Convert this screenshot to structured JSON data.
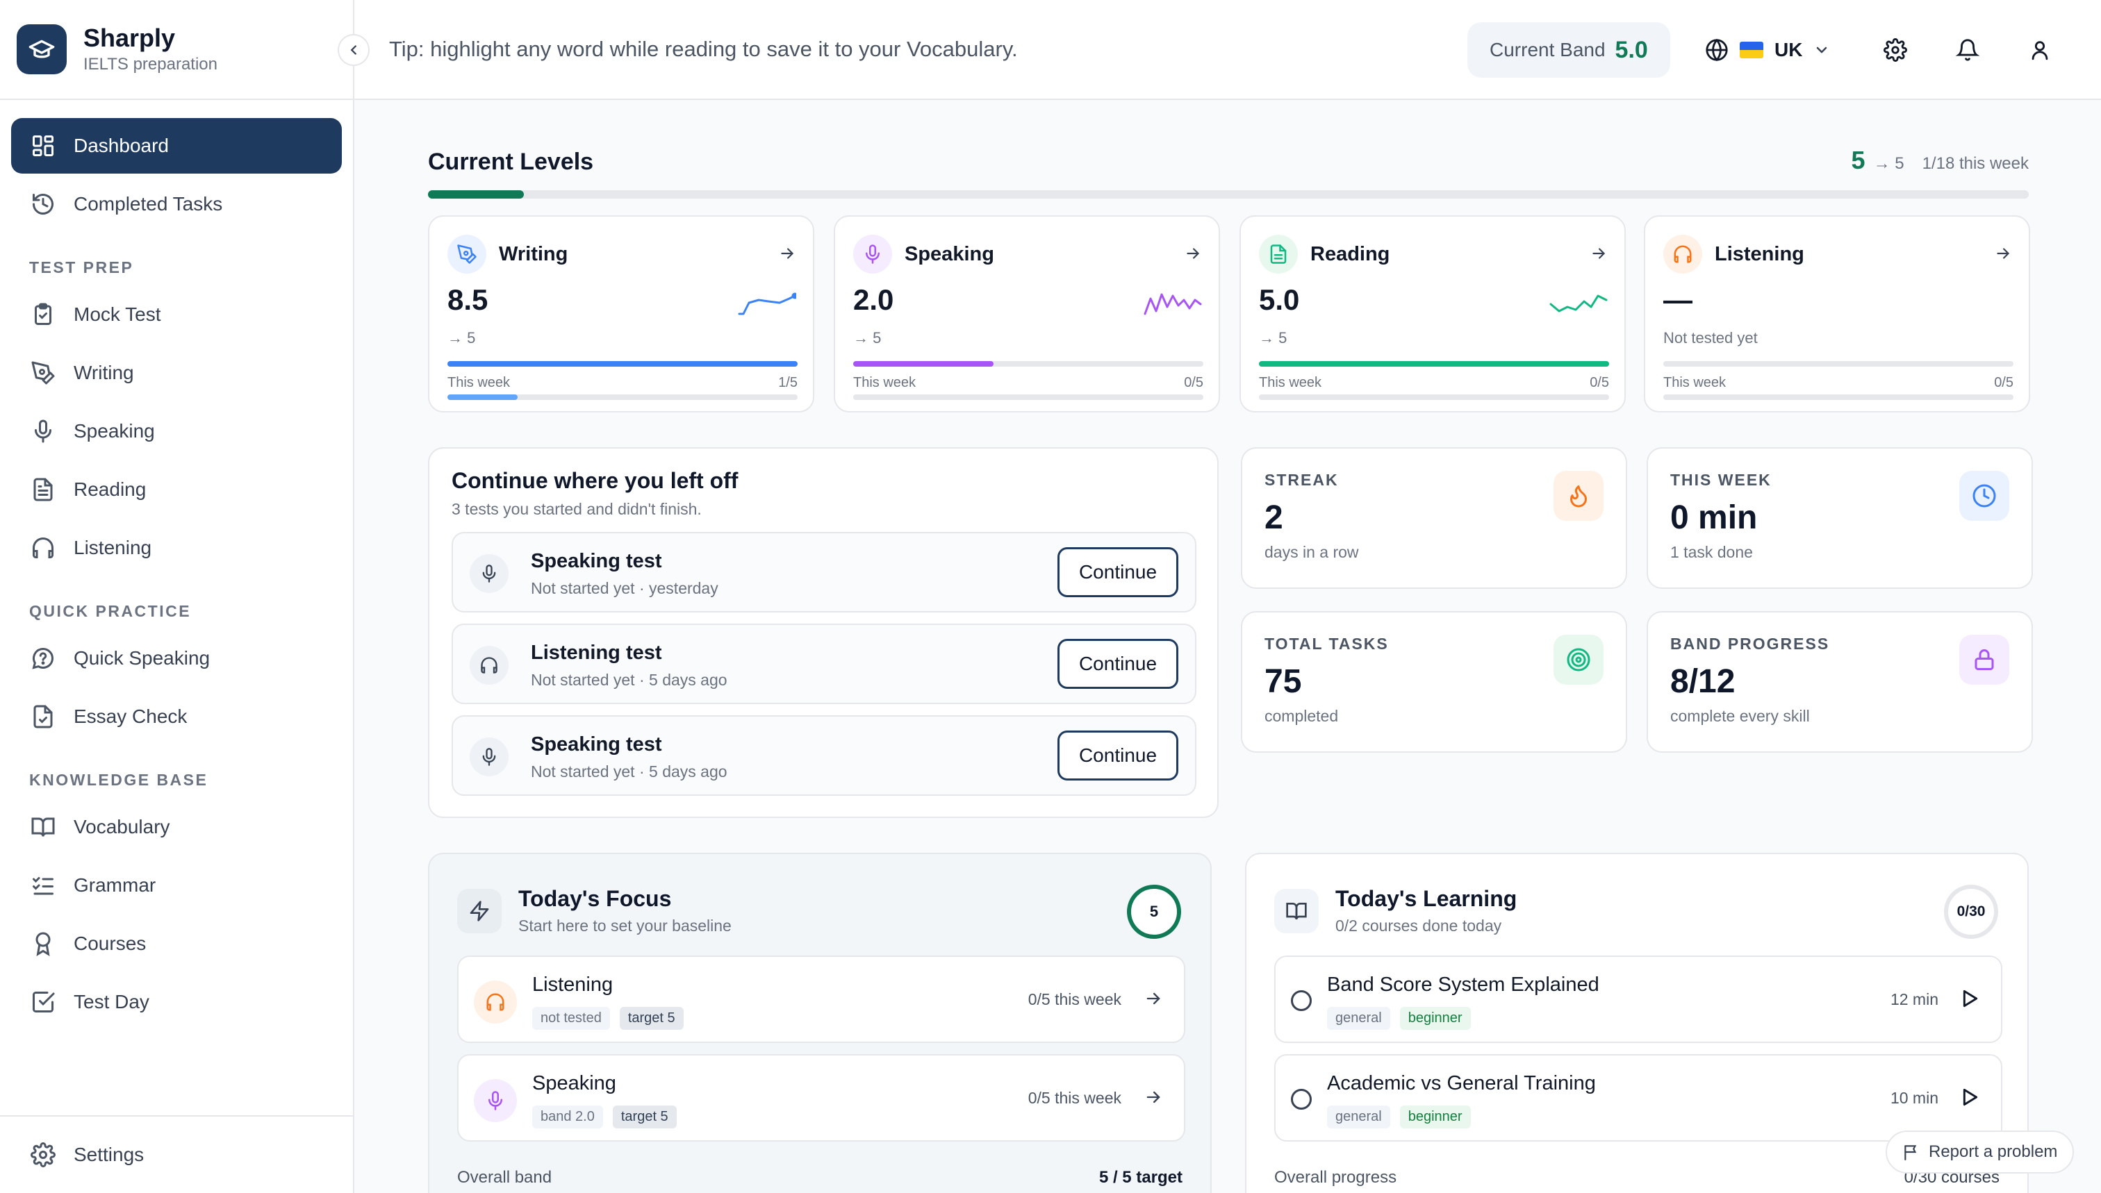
{
  "brand": {
    "name": "Sharply",
    "subtitle": "IELTS preparation"
  },
  "header": {
    "tip": "Tip: highlight any word while reading to save it to your Vocabulary.",
    "current_band_label": "Current Band",
    "current_band_value": "5.0",
    "language": "UK"
  },
  "sidebar": {
    "top_items": [
      {
        "label": "Dashboard"
      },
      {
        "label": "Completed Tasks"
      }
    ],
    "sections": [
      {
        "title": "TEST PREP",
        "items": [
          {
            "label": "Mock Test"
          },
          {
            "label": "Writing"
          },
          {
            "label": "Speaking"
          },
          {
            "label": "Reading"
          },
          {
            "label": "Listening"
          }
        ]
      },
      {
        "title": "QUICK PRACTICE",
        "items": [
          {
            "label": "Quick Speaking"
          },
          {
            "label": "Essay Check"
          }
        ]
      },
      {
        "title": "KNOWLEDGE BASE",
        "items": [
          {
            "label": "Vocabulary"
          },
          {
            "label": "Grammar"
          },
          {
            "label": "Courses"
          },
          {
            "label": "Test Day"
          }
        ]
      }
    ],
    "settings_label": "Settings"
  },
  "levels": {
    "title": "Current Levels",
    "summary_current": "5",
    "summary_arrow": "→ 5",
    "summary_week": "1/18 this week",
    "progress": 0.06
  },
  "skills": [
    {
      "name": "Writing",
      "score": "8.5",
      "target": "→ 5",
      "week_label": "This week",
      "week_count": "1/5",
      "score_fill": 1.0,
      "week_fill": 0.2,
      "color": "#3b82f6"
    },
    {
      "name": "Speaking",
      "score": "2.0",
      "target": "→ 5",
      "week_label": "This week",
      "week_count": "0/5",
      "score_fill": 0.4,
      "week_fill": 0.0,
      "color": "#a855f7"
    },
    {
      "name": "Reading",
      "score": "5.0",
      "target": "→ 5",
      "week_label": "This week",
      "week_count": "0/5",
      "score_fill": 1.0,
      "week_fill": 0.0,
      "color": "#10b981"
    },
    {
      "name": "Listening",
      "score": "—",
      "target": "Not tested yet",
      "week_label": "This week",
      "week_count": "0/5",
      "score_fill": 0.0,
      "week_fill": 0.0,
      "color": "#f97316"
    }
  ],
  "continue": {
    "title": "Continue where you left off",
    "subtitle": "3 tests you started and didn't finish.",
    "button_label": "Continue",
    "items": [
      {
        "name": "Speaking test",
        "meta": "Not started yet · yesterday",
        "icon": "mic-icon"
      },
      {
        "name": "Listening test",
        "meta": "Not started yet · 5 days ago",
        "icon": "headphones-icon"
      },
      {
        "name": "Speaking test",
        "meta": "Not started yet · 5 days ago",
        "icon": "mic-icon"
      }
    ]
  },
  "stats": [
    {
      "label": "STREAK",
      "value": "2",
      "sub": "days in a row",
      "icon": "flame-icon",
      "color": "#f97316"
    },
    {
      "label": "THIS WEEK",
      "value": "0 min",
      "sub": "1 task done",
      "icon": "clock-icon",
      "color": "#3b82f6"
    },
    {
      "label": "TOTAL TASKS",
      "value": "75",
      "sub": "completed",
      "icon": "target-icon",
      "color": "#10b981"
    },
    {
      "label": "BAND PROGRESS",
      "value": "8/12",
      "sub": "complete every skill",
      "icon": "lock-icon",
      "color": "#a855f7"
    }
  ],
  "focus": {
    "title": "Today's Focus",
    "subtitle": "Start here to set your baseline",
    "ring_value": "5",
    "items": [
      {
        "name": "Listening",
        "tag1": "not tested",
        "tag2": "target 5",
        "right": "0/5 this week"
      },
      {
        "name": "Speaking",
        "tag1": "band 2.0",
        "tag2": "target 5",
        "right": "0/5 this week"
      }
    ],
    "footer_label": "Overall band",
    "footer_value": "5 / 5 target"
  },
  "learning": {
    "title": "Today's Learning",
    "subtitle": "0/2 courses done today",
    "ring_value": "0/30",
    "items": [
      {
        "name": "Band Score System Explained",
        "tag1": "general",
        "tag2": "beginner",
        "right": "12 min"
      },
      {
        "name": "Academic vs General Training",
        "tag1": "general",
        "tag2": "beginner",
        "right": "10 min"
      }
    ],
    "footer_label": "Overall progress",
    "footer_value": "0/30 courses"
  },
  "report_label": "Report a problem"
}
